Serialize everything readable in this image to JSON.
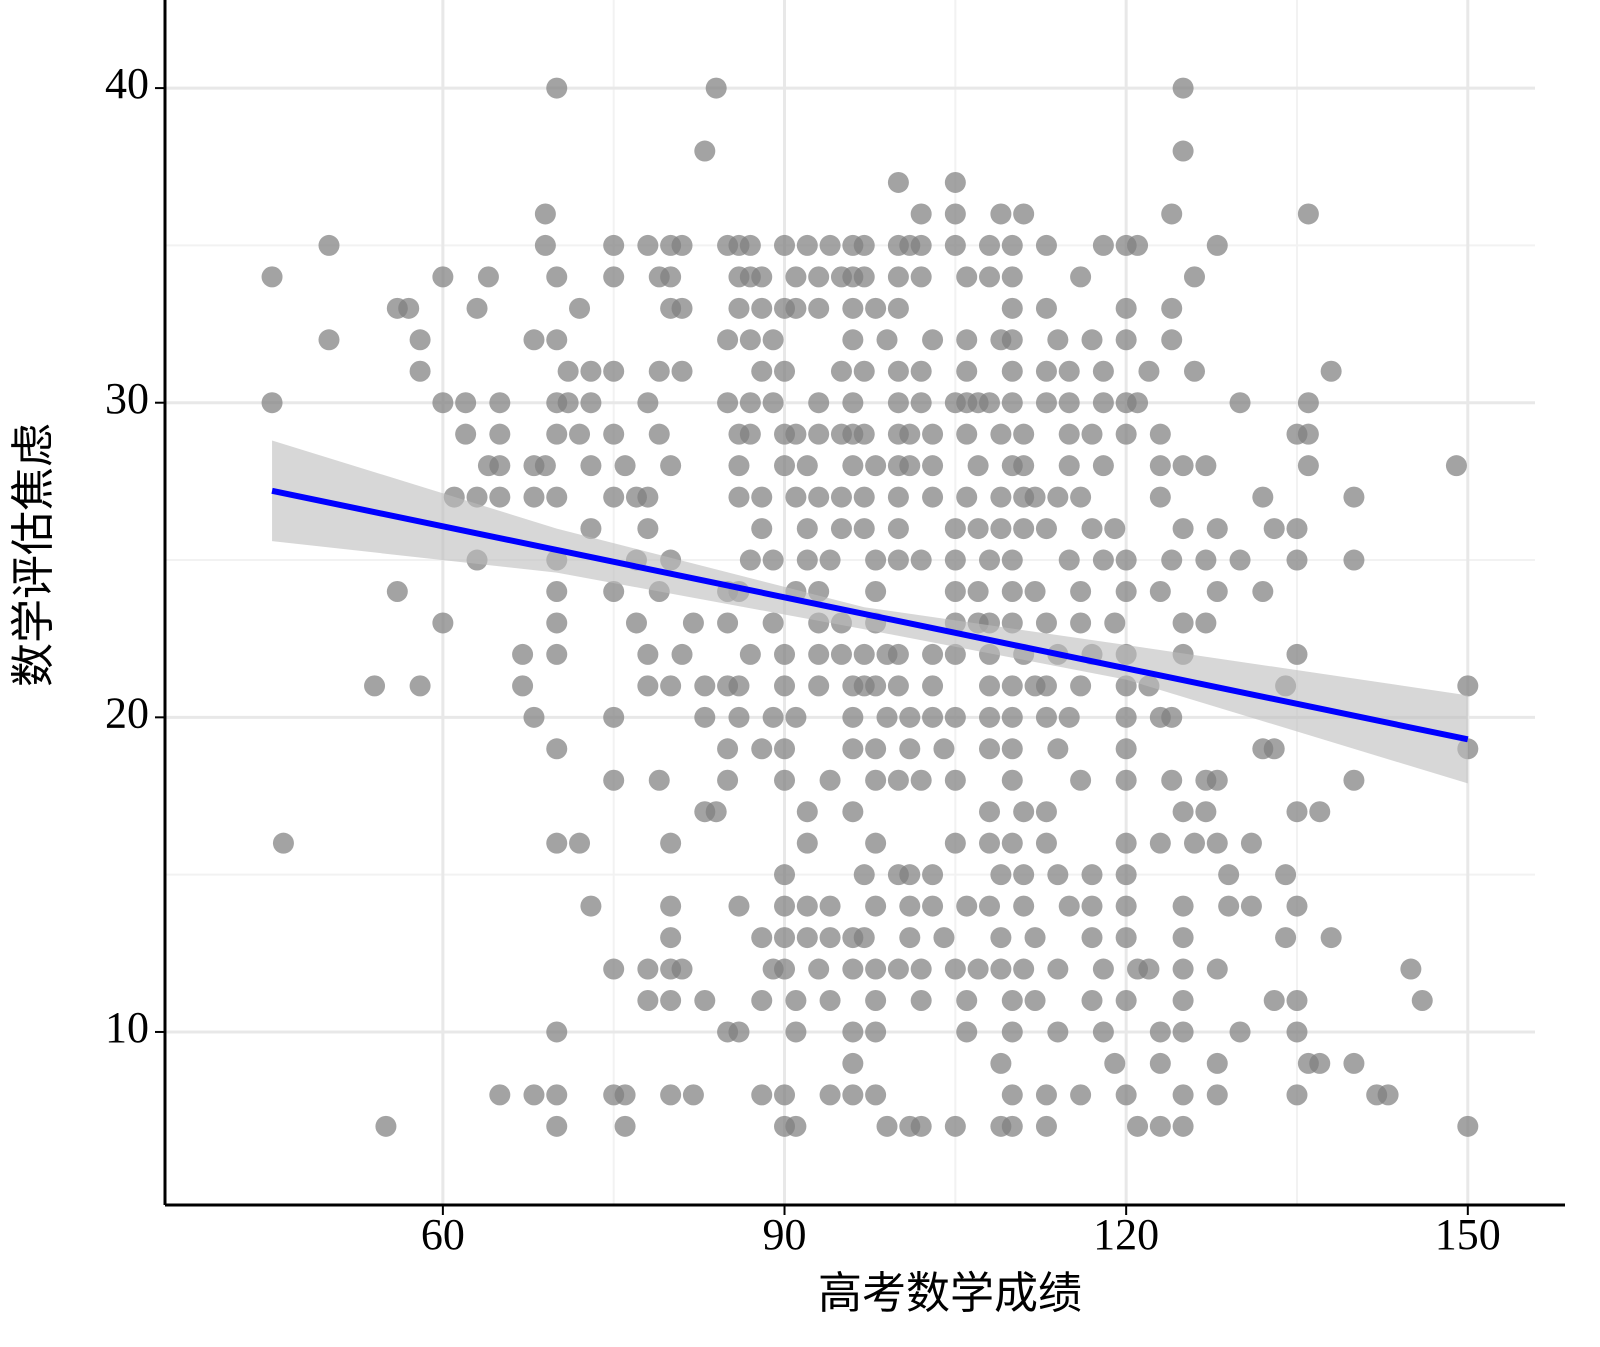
{
  "chart_data": {
    "type": "scatter",
    "xlabel": "高考数学成绩",
    "ylabel": "数学评估焦虑",
    "xlim": [
      35.6,
      155.9
    ],
    "ylim": [
      4.5,
      42.8
    ],
    "xticks": [
      60,
      90,
      120,
      150
    ],
    "yticks": [
      10,
      20,
      30,
      40
    ],
    "xminor": [
      75,
      105,
      135
    ],
    "yminor": [
      15,
      25,
      35
    ],
    "grid": true,
    "color": "#7f7f7f",
    "x": [
      70,
      84,
      125,
      83,
      125,
      100,
      105,
      69,
      102,
      105,
      109,
      111,
      124,
      136,
      50,
      69,
      75,
      78,
      80,
      81,
      85,
      86,
      87,
      90,
      92,
      94,
      96,
      97,
      100,
      101,
      102,
      105,
      108,
      110,
      113,
      118,
      120,
      121,
      128,
      45,
      60,
      64,
      70,
      75,
      79,
      80,
      86,
      87,
      88,
      91,
      93,
      95,
      96,
      97,
      100,
      102,
      106,
      108,
      110,
      116,
      126,
      56,
      57,
      63,
      72,
      80,
      81,
      86,
      88,
      90,
      91,
      93,
      96,
      98,
      100,
      110,
      113,
      120,
      124,
      50,
      58,
      68,
      70,
      85,
      87,
      89,
      96,
      99,
      103,
      106,
      109,
      110,
      114,
      117,
      120,
      124,
      58,
      71,
      73,
      75,
      79,
      81,
      88,
      90,
      95,
      97,
      100,
      102,
      106,
      110,
      113,
      115,
      118,
      122,
      126,
      138,
      45,
      60,
      62,
      65,
      70,
      71,
      73,
      78,
      85,
      87,
      89,
      93,
      96,
      100,
      102,
      105,
      106,
      107,
      108,
      110,
      113,
      115,
      118,
      120,
      121,
      130,
      136,
      62,
      65,
      70,
      72,
      75,
      79,
      86,
      87,
      90,
      91,
      93,
      95,
      96,
      97,
      100,
      101,
      103,
      106,
      109,
      111,
      115,
      117,
      120,
      123,
      135,
      136,
      64,
      65,
      68,
      69,
      73,
      76,
      80,
      86,
      90,
      92,
      96,
      98,
      100,
      101,
      103,
      107,
      110,
      111,
      115,
      118,
      123,
      125,
      127,
      136,
      149,
      61,
      63,
      65,
      68,
      70,
      75,
      77,
      78,
      86,
      88,
      91,
      93,
      95,
      97,
      100,
      103,
      106,
      109,
      111,
      112,
      114,
      116,
      123,
      132,
      140,
      73,
      78,
      88,
      92,
      95,
      97,
      100,
      105,
      107,
      109,
      111,
      113,
      117,
      119,
      125,
      128,
      133,
      135,
      63,
      70,
      77,
      80,
      87,
      89,
      92,
      94,
      98,
      100,
      102,
      105,
      108,
      110,
      115,
      118,
      120,
      124,
      127,
      130,
      135,
      140,
      56,
      70,
      75,
      79,
      85,
      86,
      91,
      93,
      98,
      105,
      107,
      110,
      112,
      116,
      120,
      123,
      128,
      132,
      60,
      70,
      77,
      82,
      85,
      89,
      93,
      95,
      98,
      105,
      107,
      108,
      110,
      113,
      116,
      119,
      125,
      127,
      67,
      70,
      78,
      81,
      87,
      90,
      93,
      95,
      97,
      99,
      100,
      103,
      105,
      108,
      111,
      114,
      117,
      120,
      125,
      135,
      54,
      58,
      67,
      78,
      80,
      83,
      85,
      86,
      90,
      93,
      96,
      97,
      98,
      100,
      103,
      108,
      110,
      112,
      113,
      116,
      120,
      122,
      134,
      150,
      68,
      75,
      83,
      86,
      89,
      91,
      96,
      99,
      101,
      103,
      105,
      108,
      110,
      113,
      115,
      120,
      123,
      124,
      70,
      85,
      88,
      90,
      96,
      98,
      101,
      104,
      108,
      110,
      114,
      120,
      132,
      133,
      150,
      75,
      79,
      85,
      90,
      94,
      98,
      100,
      102,
      105,
      110,
      116,
      120,
      124,
      127,
      128,
      140,
      83,
      84,
      92,
      96,
      108,
      111,
      113,
      125,
      127,
      135,
      137,
      46,
      70,
      72,
      80,
      92,
      98,
      105,
      108,
      110,
      113,
      120,
      123,
      126,
      128,
      131,
      90,
      97,
      100,
      101,
      103,
      109,
      111,
      114,
      117,
      120,
      129,
      134,
      73,
      80,
      86,
      90,
      92,
      94,
      98,
      101,
      103,
      106,
      108,
      111,
      115,
      117,
      120,
      125,
      129,
      131,
      135,
      80,
      88,
      90,
      92,
      94,
      96,
      97,
      101,
      104,
      109,
      112,
      117,
      120,
      125,
      134,
      138,
      75,
      78,
      80,
      81,
      89,
      90,
      93,
      96,
      98,
      100,
      102,
      105,
      107,
      109,
      111,
      114,
      118,
      121,
      122,
      125,
      128,
      145,
      78,
      80,
      83,
      88,
      91,
      94,
      98,
      102,
      106,
      110,
      112,
      117,
      120,
      125,
      133,
      135,
      146,
      70,
      85,
      86,
      91,
      96,
      98,
      106,
      110,
      114,
      118,
      123,
      125,
      130,
      135,
      96,
      109,
      119,
      123,
      128,
      136,
      137,
      140,
      65,
      68,
      70,
      75,
      76,
      80,
      82,
      88,
      90,
      94,
      96,
      98,
      110,
      113,
      116,
      120,
      125,
      128,
      135,
      142,
      143,
      55,
      70,
      76,
      90,
      91,
      99,
      101,
      102,
      105,
      109,
      110,
      113,
      121,
      123,
      125,
      150
    ],
    "values": [
      40,
      40,
      40,
      38,
      38,
      37,
      37,
      36,
      36,
      36,
      36,
      36,
      36,
      36,
      35,
      35,
      35,
      35,
      35,
      35,
      35,
      35,
      35,
      35,
      35,
      35,
      35,
      35,
      35,
      35,
      35,
      35,
      35,
      35,
      35,
      35,
      35,
      35,
      35,
      34,
      34,
      34,
      34,
      34,
      34,
      34,
      34,
      34,
      34,
      34,
      34,
      34,
      34,
      34,
      34,
      34,
      34,
      34,
      34,
      34,
      34,
      33,
      33,
      33,
      33,
      33,
      33,
      33,
      33,
      33,
      33,
      33,
      33,
      33,
      33,
      33,
      33,
      33,
      33,
      32,
      32,
      32,
      32,
      32,
      32,
      32,
      32,
      32,
      32,
      32,
      32,
      32,
      32,
      32,
      32,
      32,
      31,
      31,
      31,
      31,
      31,
      31,
      31,
      31,
      31,
      31,
      31,
      31,
      31,
      31,
      31,
      31,
      31,
      31,
      31,
      31,
      30,
      30,
      30,
      30,
      30,
      30,
      30,
      30,
      30,
      30,
      30,
      30,
      30,
      30,
      30,
      30,
      30,
      30,
      30,
      30,
      30,
      30,
      30,
      30,
      30,
      30,
      30,
      29,
      29,
      29,
      29,
      29,
      29,
      29,
      29,
      29,
      29,
      29,
      29,
      29,
      29,
      29,
      29,
      29,
      29,
      29,
      29,
      29,
      29,
      29,
      29,
      29,
      29,
      28,
      28,
      28,
      28,
      28,
      28,
      28,
      28,
      28,
      28,
      28,
      28,
      28,
      28,
      28,
      28,
      28,
      28,
      28,
      28,
      28,
      28,
      28,
      28,
      28,
      27,
      27,
      27,
      27,
      27,
      27,
      27,
      27,
      27,
      27,
      27,
      27,
      27,
      27,
      27,
      27,
      27,
      27,
      27,
      27,
      27,
      27,
      27,
      27,
      27,
      26,
      26,
      26,
      26,
      26,
      26,
      26,
      26,
      26,
      26,
      26,
      26,
      26,
      26,
      26,
      26,
      26,
      26,
      25,
      25,
      25,
      25,
      25,
      25,
      25,
      25,
      25,
      25,
      25,
      25,
      25,
      25,
      25,
      25,
      25,
      25,
      25,
      25,
      25,
      25,
      24,
      24,
      24,
      24,
      24,
      24,
      24,
      24,
      24,
      24,
      24,
      24,
      24,
      24,
      24,
      24,
      24,
      24,
      23,
      23,
      23,
      23,
      23,
      23,
      23,
      23,
      23,
      23,
      23,
      23,
      23,
      23,
      23,
      23,
      23,
      23,
      22,
      22,
      22,
      22,
      22,
      22,
      22,
      22,
      22,
      22,
      22,
      22,
      22,
      22,
      22,
      22,
      22,
      22,
      22,
      22,
      21,
      21,
      21,
      21,
      21,
      21,
      21,
      21,
      21,
      21,
      21,
      21,
      21,
      21,
      21,
      21,
      21,
      21,
      21,
      21,
      21,
      21,
      21,
      21,
      20,
      20,
      20,
      20,
      20,
      20,
      20,
      20,
      20,
      20,
      20,
      20,
      20,
      20,
      20,
      20,
      20,
      20,
      19,
      19,
      19,
      19,
      19,
      19,
      19,
      19,
      19,
      19,
      19,
      19,
      19,
      19,
      19,
      18,
      18,
      18,
      18,
      18,
      18,
      18,
      18,
      18,
      18,
      18,
      18,
      18,
      18,
      18,
      18,
      17,
      17,
      17,
      17,
      17,
      17,
      17,
      17,
      17,
      17,
      17,
      16,
      16,
      16,
      16,
      16,
      16,
      16,
      16,
      16,
      16,
      16,
      16,
      16,
      16,
      16,
      15,
      15,
      15,
      15,
      15,
      15,
      15,
      15,
      15,
      15,
      15,
      15,
      14,
      14,
      14,
      14,
      14,
      14,
      14,
      14,
      14,
      14,
      14,
      14,
      14,
      14,
      14,
      14,
      14,
      14,
      14,
      13,
      13,
      13,
      13,
      13,
      13,
      13,
      13,
      13,
      13,
      13,
      13,
      13,
      13,
      13,
      13,
      12,
      12,
      12,
      12,
      12,
      12,
      12,
      12,
      12,
      12,
      12,
      12,
      12,
      12,
      12,
      12,
      12,
      12,
      12,
      12,
      12,
      12,
      11,
      11,
      11,
      11,
      11,
      11,
      11,
      11,
      11,
      11,
      11,
      11,
      11,
      11,
      11,
      11,
      11,
      10,
      10,
      10,
      10,
      10,
      10,
      10,
      10,
      10,
      10,
      10,
      10,
      10,
      10,
      9,
      9,
      9,
      9,
      9,
      9,
      9,
      9,
      8,
      8,
      8,
      8,
      8,
      8,
      8,
      8,
      8,
      8,
      8,
      8,
      8,
      8,
      8,
      8,
      8,
      8,
      8,
      8,
      8,
      7,
      7,
      7,
      7,
      7,
      7,
      7,
      7,
      7,
      7,
      7,
      7,
      7,
      7,
      7,
      7
    ],
    "fit": {
      "color": "#0000ff",
      "x": [
        45,
        150
      ],
      "values": [
        27.2,
        19.3
      ]
    },
    "band": {
      "color": "#bdbdbd",
      "x": [
        45,
        70,
        97,
        120,
        150
      ],
      "lower": [
        25.6,
        24.6,
        22.8,
        21.2,
        17.9
      ],
      "upper": [
        28.8,
        26.0,
        23.5,
        22.3,
        20.7
      ]
    }
  }
}
